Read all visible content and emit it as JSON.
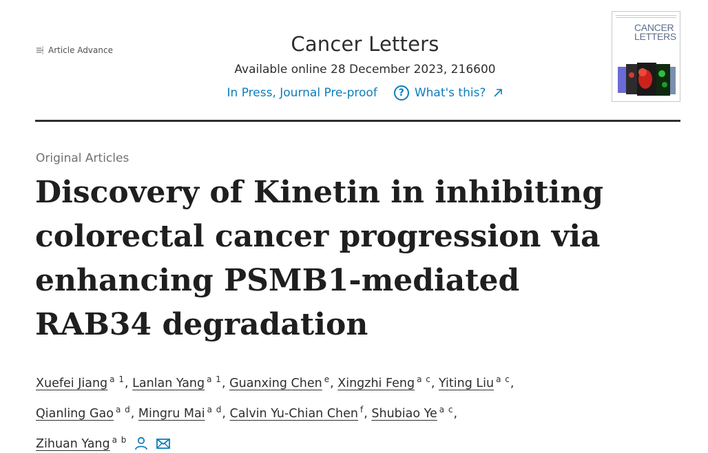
{
  "badge": {
    "label": "Article Advance"
  },
  "journal": {
    "title": "Cancer Letters",
    "availability": "Available online 28 December 2023, 216600",
    "status": "In Press, Journal Pre-proof",
    "help_label": "What's this?",
    "help_symbol": "?"
  },
  "cover": {
    "title_line1": "CANCER",
    "title_line2": "LETTERS"
  },
  "article": {
    "type": "Original Articles",
    "title": "Discovery of Kinetin in inhibiting colorectal cancer progression via enhancing PSMB1-mediated RAB34 degradation"
  },
  "authors": [
    {
      "name": "Xuefei Jiang",
      "aff": "a 1"
    },
    {
      "name": "Lanlan Yang",
      "aff": "a 1"
    },
    {
      "name": "Guanxing Chen",
      "aff": "e"
    },
    {
      "name": "Xingzhi Feng",
      "aff": "a c"
    },
    {
      "name": "Yiting Liu",
      "aff": "a c"
    },
    {
      "name": "Qianling Gao",
      "aff": "a d"
    },
    {
      "name": "Mingru Mai",
      "aff": "a d"
    },
    {
      "name": "Calvin Yu-Chian Chen",
      "aff": "f"
    },
    {
      "name": "Shubiao Ye",
      "aff": "a c"
    },
    {
      "name": "Zihuan Yang",
      "aff": "a b"
    }
  ],
  "colors": {
    "link": "#0c7dbb",
    "text": "#2e2e2e"
  },
  "icons": [
    "article-advance-icon",
    "help-circle-icon",
    "external-link-icon",
    "person-icon",
    "mail-icon"
  ]
}
